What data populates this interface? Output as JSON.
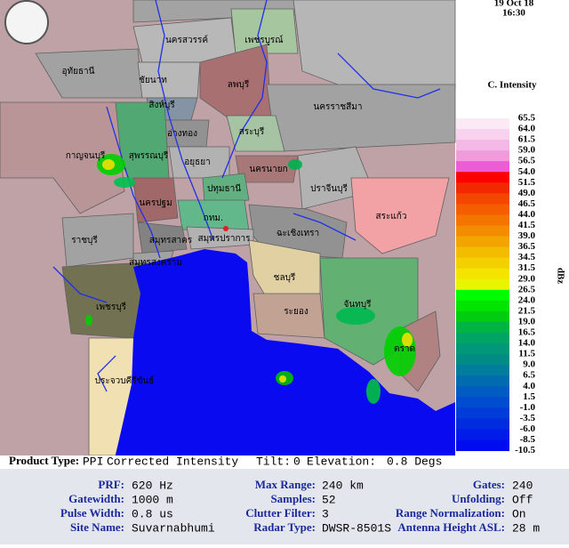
{
  "header": {
    "date": "19 Oct 18",
    "time": "16:30"
  },
  "legend": {
    "title": "C. Intensity",
    "unit": "dBz",
    "labels": [
      "65.5",
      "64.0",
      "61.5",
      "59.0",
      "56.5",
      "54.0",
      "51.5",
      "49.0",
      "46.5",
      "44.0",
      "41.5",
      "39.0",
      "36.5",
      "34.5",
      "31.5",
      "29.0",
      "26.5",
      "24.0",
      "21.5",
      "19.0",
      "16.5",
      "14.0",
      "11.5",
      "9.0",
      "6.5",
      "4.0",
      "1.5",
      "-1.0",
      "-3.5",
      "-6.0",
      "-8.5",
      "-10.5"
    ],
    "colors": [
      "#fbeaf5",
      "#f8d2ee",
      "#f4b8e6",
      "#f09cdc",
      "#ec5cd4",
      "#ff0000",
      "#f42800",
      "#f44600",
      "#f45e00",
      "#f47400",
      "#f48c00",
      "#f4a400",
      "#f4bc00",
      "#f4d000",
      "#f4e400",
      "#e8f400",
      "#00fc00",
      "#00e400",
      "#00cc10",
      "#00b444",
      "#00a464",
      "#009878",
      "#008c84",
      "#007c9c",
      "#006cb0",
      "#005cc0",
      "#004cd0",
      "#003cd8",
      "#002ce0",
      "#001ce8",
      "#000cf0"
    ]
  },
  "map": {
    "provinces": [
      "นครสวรรค์",
      "เพชรบูรณ์",
      "อุทัยธานี",
      "ชัยนาท",
      "ลพบุรี",
      "สิงห์บุรี",
      "นครราชสีมา",
      "อ่างทอง",
      "สระบุรี",
      "สุพรรณบุรี",
      "กาญจนบุรี",
      "อยุธยา",
      "นครนายก",
      "ปทุมธานี",
      "ปราจีนบุรี",
      "นครปฐม",
      "กทม.",
      "สระแก้ว",
      "ราชบุรี",
      "ฉะเชิงเทรา",
      "สมุทรสาคร",
      "สมุทรปราการ",
      "สมุทรสงคราม",
      "ชลบุรี",
      "ระยอง",
      "เพชรบุรี",
      "จันทบุรี",
      "ตราด",
      "ประจวบคีรีขันธ์"
    ]
  },
  "info": {
    "product_type_label": "Product Type:",
    "product": "PPI",
    "product_name": "Corrected Intensity",
    "tilt_label": "Tilt:",
    "tilt": "0",
    "elevation_label": "Elevation:",
    "elevation": "0.8 Degs",
    "rows": [
      [
        {
          "label": "PRF:",
          "value": "620 Hz"
        },
        {
          "label": "Max Range:",
          "value": "240 km"
        },
        {
          "label": "Gates:",
          "value": "240"
        }
      ],
      [
        {
          "label": "Gatewidth:",
          "value": "1000 m"
        },
        {
          "label": "Samples:",
          "value": "52"
        },
        {
          "label": "Unfolding:",
          "value": "Off"
        }
      ],
      [
        {
          "label": "Pulse Width:",
          "value": "0.8 us"
        },
        {
          "label": "Clutter Filter:",
          "value": "3"
        },
        {
          "label": "Range Normalization:",
          "value": "On"
        }
      ],
      [
        {
          "label": "Site Name:",
          "value": "Suvarnabhumi"
        },
        {
          "label": "Radar Type:",
          "value": "DWSR-8501S"
        },
        {
          "label": "Antenna Height ASL:",
          "value": "28 m"
        }
      ]
    ]
  }
}
